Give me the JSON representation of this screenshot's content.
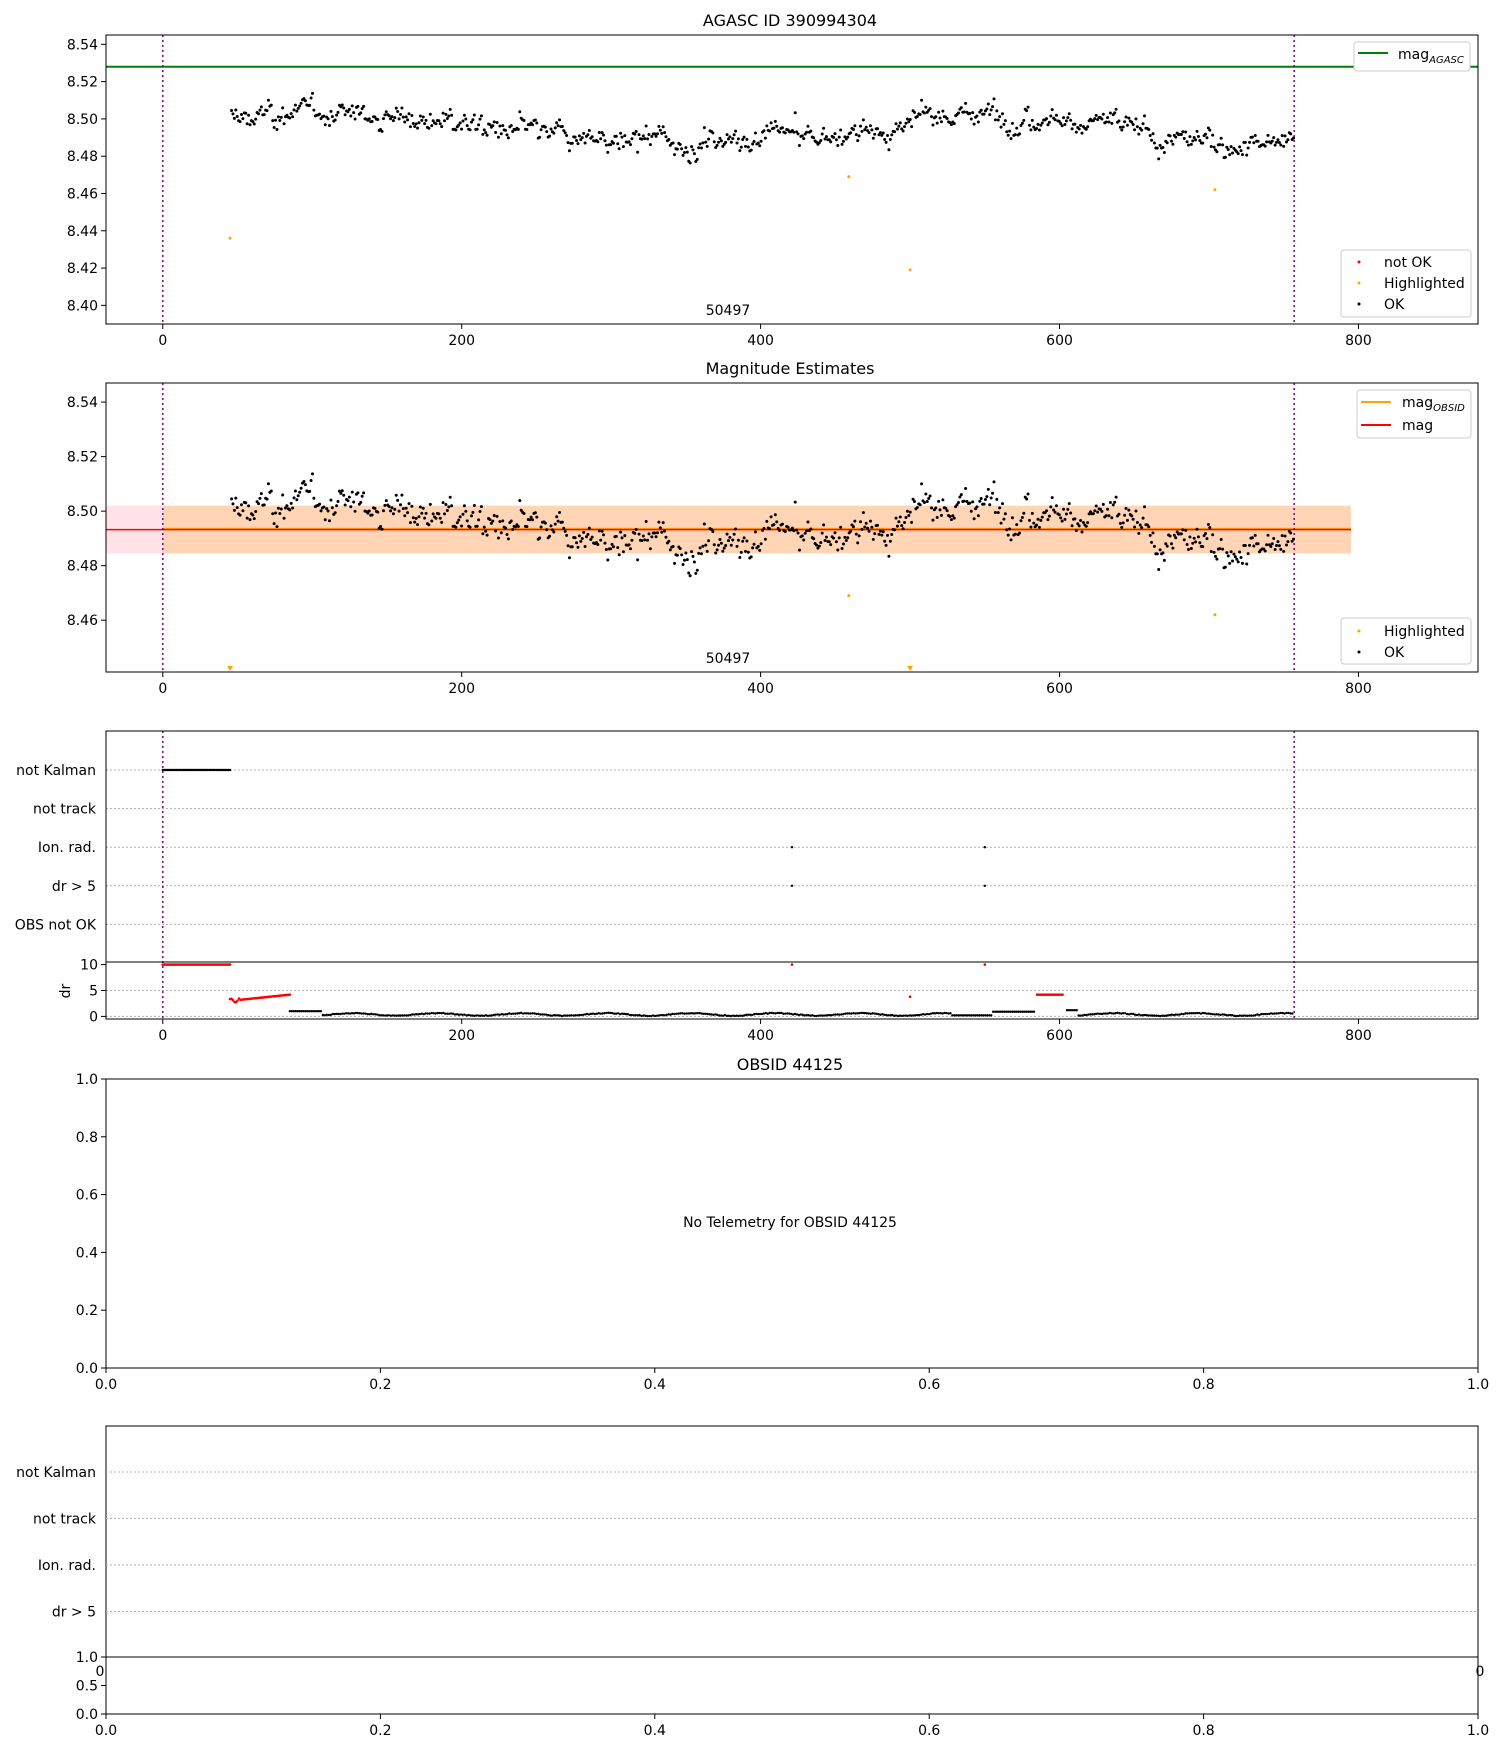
{
  "chart_data": [
    {
      "type": "scatter",
      "title": "AGASC ID 390994304",
      "xlabel": "",
      "ylabel": "",
      "xlim": [
        -38,
        880
      ],
      "ylim": [
        8.39,
        8.545
      ],
      "x_ticks": [
        "0",
        "200",
        "400",
        "600",
        "800"
      ],
      "y_ticks": [
        "8.40",
        "8.42",
        "8.44",
        "8.46",
        "8.48",
        "8.50",
        "8.52",
        "8.54"
      ],
      "grid": false,
      "obs_boundaries": [
        0,
        757
      ],
      "obs_label": "50497",
      "mag_agasc": 8.528,
      "line_legend": [
        {
          "name": "mag",
          "subscript": "AGASC",
          "color": "#008000"
        }
      ],
      "point_legend": [
        {
          "name": "not OK",
          "color": "#ff0000"
        },
        {
          "name": "Highlighted",
          "color": "#ffa500"
        },
        {
          "name": "OK",
          "color": "#000000"
        }
      ],
      "series": [
        {
          "name": "OK",
          "color": "#000000",
          "description": "about 700 points scattered between 8.47 and 8.515 for x = 45 to 757"
        },
        {
          "name": "Highlighted",
          "color": "#ffa500",
          "points": [
            [
              45,
              8.436
            ],
            [
              459,
              8.469
            ],
            [
              500,
              8.419
            ],
            [
              704,
              8.462
            ]
          ]
        }
      ]
    },
    {
      "type": "scatter",
      "title": "Magnitude Estimates",
      "xlabel": "",
      "ylabel": "",
      "xlim": [
        -38,
        880
      ],
      "ylim": [
        8.441,
        8.547
      ],
      "x_ticks": [
        "0",
        "200",
        "400",
        "600",
        "800"
      ],
      "y_ticks": [
        "8.46",
        "8.48",
        "8.50",
        "8.52",
        "8.54"
      ],
      "grid": false,
      "obs_boundaries": [
        0,
        757
      ],
      "obs_label": "50497",
      "mag": 8.4932,
      "mag_band": [
        8.4845,
        8.502
      ],
      "mag_obsid": 8.4935,
      "mag_obsid_band": [
        8.4845,
        8.502
      ],
      "line_legend": [
        {
          "name": "mag",
          "subscript": "OBSID",
          "color": "#ffa500"
        },
        {
          "name": "mag",
          "subscript": "",
          "color": "#ff0000"
        }
      ],
      "point_legend": [
        {
          "name": "Highlighted",
          "color": "#ffa500"
        },
        {
          "name": "OK",
          "color": "#000000"
        }
      ],
      "series": [
        {
          "name": "OK",
          "color": "#000000",
          "description": "same magnitude points as the panel above"
        },
        {
          "name": "Highlighted",
          "color": "#ffa500",
          "points": [
            [
              459,
              8.469
            ],
            [
              704,
              8.462
            ]
          ]
        },
        {
          "name": "Highlighted (off scale)",
          "color": "#ffa500",
          "marker": "triangle-down",
          "points": [
            [
              45,
              8.442
            ],
            [
              500,
              8.442
            ]
          ]
        }
      ]
    },
    {
      "type": "scatter",
      "title": "",
      "xlim": [
        -38,
        880
      ],
      "x_ticks": [
        "0",
        "200",
        "400",
        "600",
        "800"
      ],
      "flag_rows": [
        "not Kalman",
        "not track",
        "Ion. rad.",
        "dr > 5",
        "OBS not OK"
      ],
      "obs_boundaries": [
        0,
        757
      ],
      "flags": [
        {
          "row": "not Kalman",
          "x_range": [
            0,
            45
          ]
        },
        {
          "row": "Ion. rad.",
          "x": [
            421,
            550
          ]
        },
        {
          "row": "dr > 5",
          "x": [
            421,
            550
          ]
        }
      ],
      "dr_panel": {
        "ylabel": "dr",
        "ylim": [
          -0.5,
          10.5
        ],
        "y_ticks": [
          "0",
          "5",
          "10"
        ],
        "series": [
          {
            "name": "not OK",
            "color": "#ff0000",
            "segments": [
              {
                "x_range": [
                  0,
                  45
                ],
                "y": 10
              },
              {
                "x_range": [
                  45,
                  85
                ],
                "y_from": 3.0,
                "y_to": 4.2
              },
              {
                "x_range": [
                  585,
                  602
                ],
                "y": 4.2
              }
            ],
            "points": [
              [
                421,
                10
              ],
              [
                550,
                10
              ],
              [
                500,
                3.8
              ]
            ]
          },
          {
            "name": "OK",
            "color": "#000000",
            "description": "values near 0–1 for x = 85 to 757"
          }
        ]
      }
    },
    {
      "type": "line",
      "title": "OBSID 44125",
      "xlim": [
        0,
        1
      ],
      "ylim": [
        0,
        1
      ],
      "x_ticks": [
        "0.0",
        "0.2",
        "0.4",
        "0.6",
        "0.8",
        "1.0"
      ],
      "y_ticks": [
        "0.0",
        "0.2",
        "0.4",
        "0.6",
        "0.8",
        "1.0"
      ],
      "annotation": "No Telemetry for OBSID 44125"
    },
    {
      "type": "scatter",
      "title": "",
      "flag_rows": [
        "not Kalman",
        "not track",
        "Ion. rad.",
        "dr > 5"
      ],
      "x_ticks_partial": [
        "0",
        "0"
      ],
      "lower_panel": {
        "ylim": [
          0,
          1
        ],
        "y_ticks": [
          "0.0",
          "0.5",
          "1.0"
        ],
        "x_ticks": [
          "0.0",
          "0.2",
          "0.4",
          "0.6",
          "0.8",
          "1.0"
        ]
      }
    }
  ]
}
